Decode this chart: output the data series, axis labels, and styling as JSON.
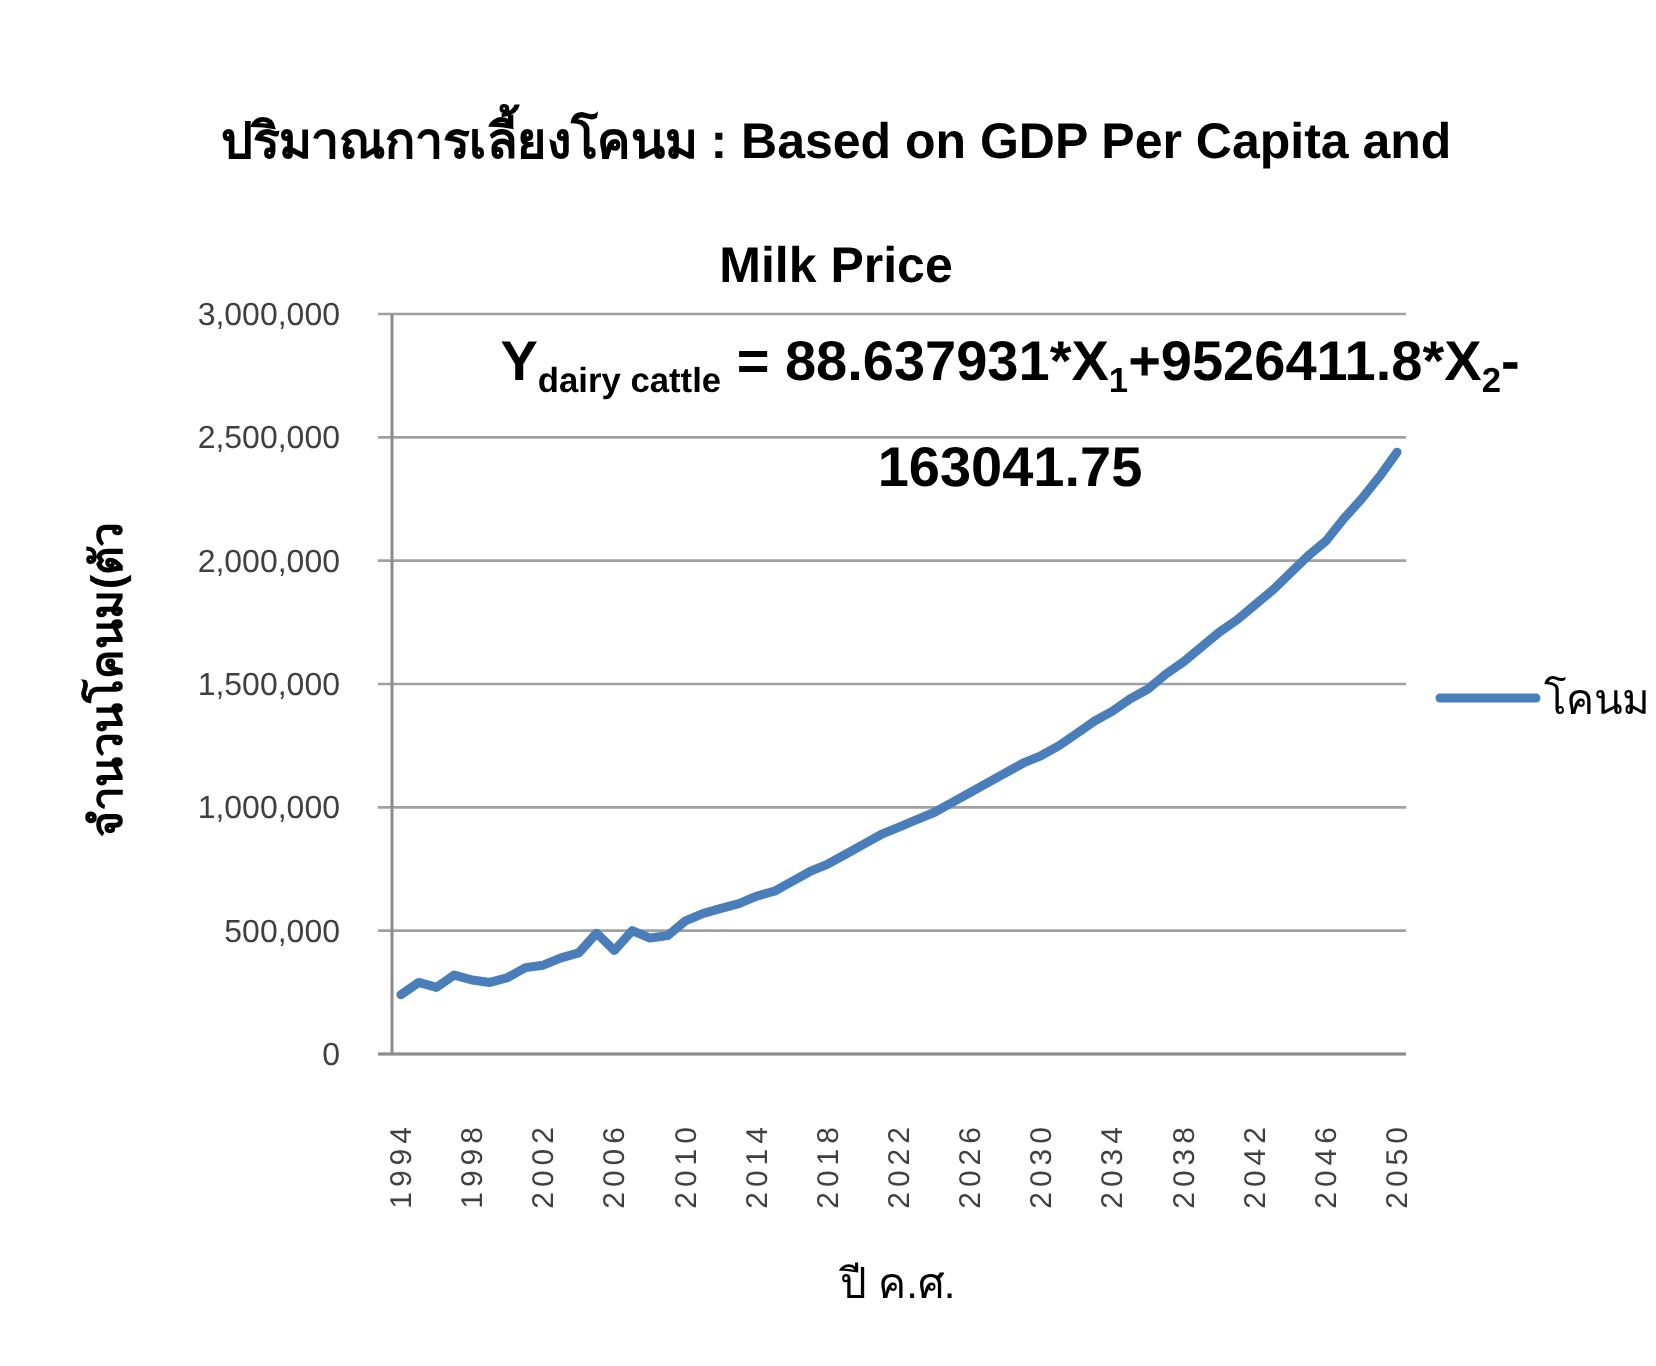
{
  "chart_data": {
    "type": "line",
    "title": "ปริมาณการเลี้ยงโคนม : Based on GDP Per Capita and Milk Price",
    "xlabel": "ปี ค.ศ.",
    "ylabel": "จำนวนโคนม(ตัว",
    "annotations": [
      "Y$_{dairy cattle}$ = 88.637931*X$_{1}$+9526411.8*X$_{2}$-163041.75"
    ],
    "categories": [
      "1994",
      null,
      null,
      null,
      "1998",
      null,
      null,
      null,
      "2002",
      null,
      null,
      null,
      "2006",
      null,
      null,
      null,
      "2010",
      null,
      null,
      null,
      "2014",
      null,
      null,
      null,
      "2018",
      null,
      null,
      null,
      "2022",
      null,
      null,
      null,
      "2026",
      null,
      null,
      null,
      "2030",
      null,
      null,
      null,
      "2034",
      null,
      null,
      null,
      "2038",
      null,
      null,
      null,
      "2042",
      null,
      null,
      null,
      "2046",
      null,
      null,
      null,
      "2050"
    ],
    "series": [
      {
        "name": "โคนม",
        "color": "#4a7ebb",
        "values": [
          240000,
          290000,
          270000,
          320000,
          300000,
          290000,
          310000,
          350000,
          360000,
          390000,
          410000,
          490000,
          420000,
          500000,
          470000,
          480000,
          540000,
          570000,
          590000,
          610000,
          640000,
          660000,
          700000,
          740000,
          770000,
          810000,
          850000,
          890000,
          920000,
          950000,
          980000,
          1020000,
          1060000,
          1100000,
          1140000,
          1180000,
          1210000,
          1250000,
          1300000,
          1350000,
          1390000,
          1440000,
          1480000,
          1540000,
          1590000,
          1650000,
          1710000,
          1760000,
          1820000,
          1880000,
          1950000,
          2020000,
          2080000,
          2170000,
          2250000,
          2340000,
          2440000
        ]
      }
    ],
    "ylim": [
      0,
      3000000
    ],
    "yticks": [
      0,
      {
        "value": 500000,
        "label": "500,000"
      },
      {
        "value": 1000000,
        "label": "1,000,000"
      },
      {
        "value": 1500000,
        "label": "1,500,000"
      },
      {
        "value": 2000000,
        "label": "2,000,000"
      },
      {
        "value": 2500000,
        "label": "2,500,000"
      },
      {
        "value": 3000000,
        "label": "3,000,000"
      }
    ],
    "grid": "y",
    "legend": "right",
    "line_style": "solid"
  }
}
